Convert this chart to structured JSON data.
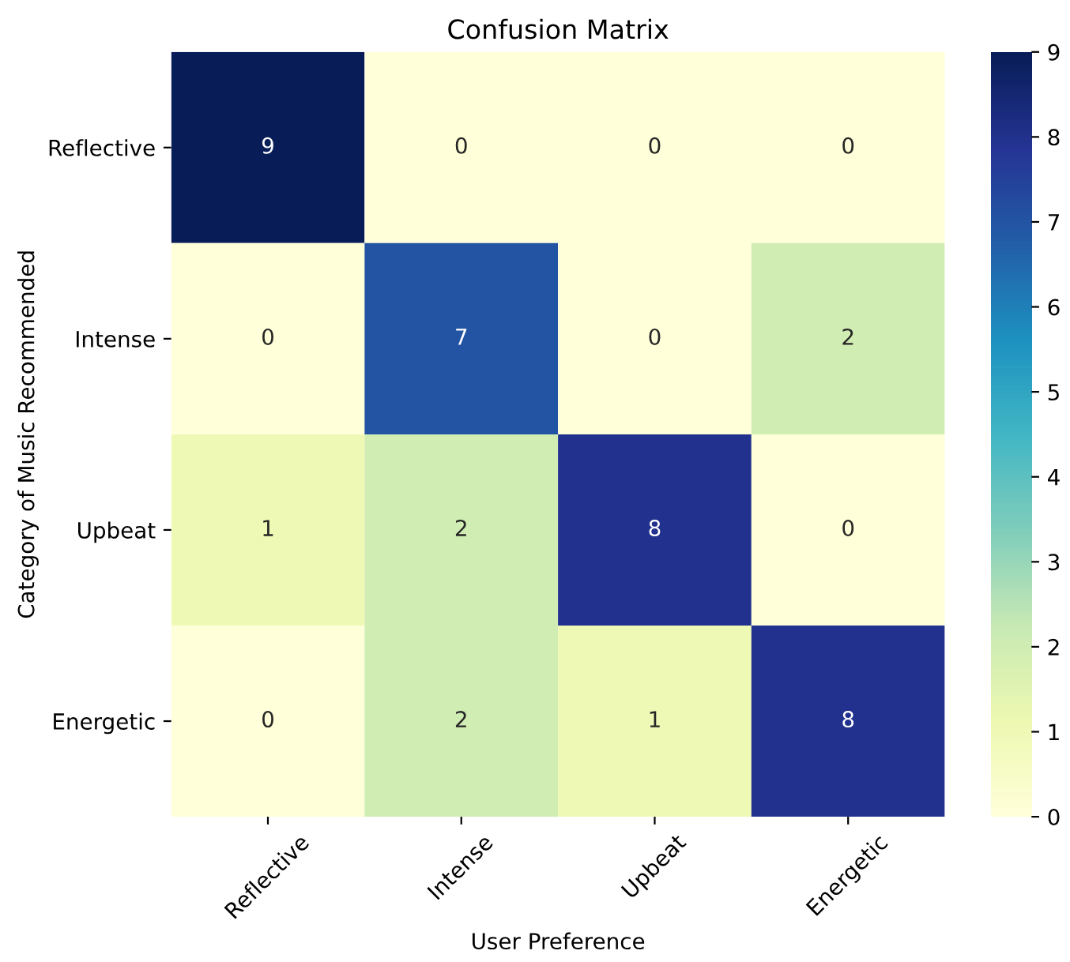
{
  "chart_data": {
    "type": "heatmap",
    "title": "Confusion Matrix",
    "xlabel": "User Preference",
    "ylabel": "Category of Music Recommended",
    "categories": [
      "Reflective",
      "Intense",
      "Upbeat",
      "Energetic"
    ],
    "y_categories": [
      "Reflective",
      "Intense",
      "Upbeat",
      "Energetic"
    ],
    "cells": [
      [
        9,
        0,
        0,
        0
      ],
      [
        0,
        7,
        0,
        2
      ],
      [
        1,
        2,
        8,
        0
      ],
      [
        0,
        2,
        1,
        8
      ]
    ],
    "clim": [
      0,
      9
    ],
    "cticks": [
      0,
      1,
      2,
      3,
      4,
      5,
      6,
      7,
      8,
      9
    ],
    "data_labels": true,
    "grid": false
  }
}
